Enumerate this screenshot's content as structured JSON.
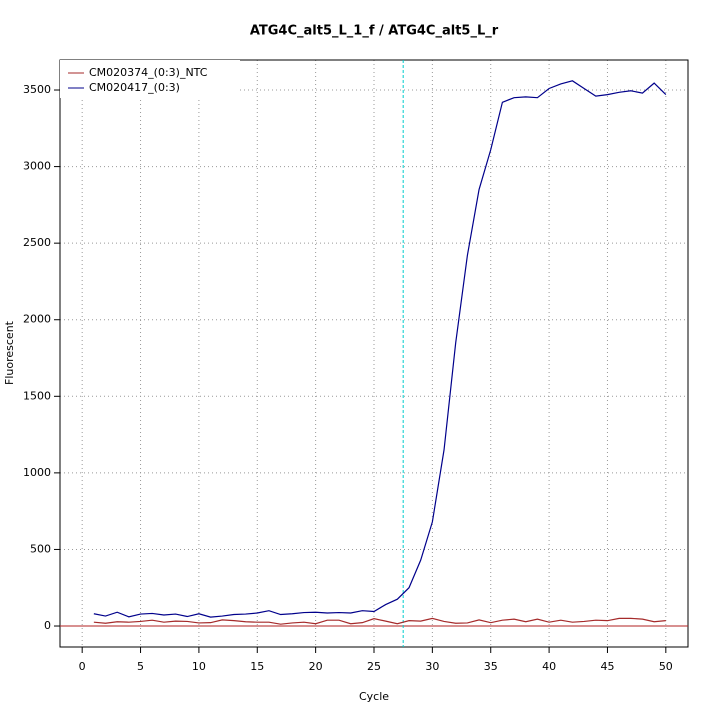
{
  "chart_data": {
    "type": "line",
    "title": "ATG4C_alt5_L_1_f / ATG4C_alt5_L_r",
    "x_label": "Cycle",
    "y_label": "Fluorescent",
    "x": [
      1,
      2,
      3,
      4,
      5,
      6,
      7,
      8,
      9,
      10,
      11,
      12,
      13,
      14,
      15,
      16,
      17,
      18,
      19,
      20,
      21,
      22,
      23,
      24,
      25,
      26,
      27,
      28,
      29,
      30,
      31,
      32,
      33,
      34,
      35,
      36,
      37,
      38,
      39,
      40,
      41,
      42,
      43,
      44,
      45,
      46,
      47,
      48,
      49,
      50
    ],
    "series": [
      {
        "name": "CM020374_(0:3)_NTC",
        "color": "#a52a2a",
        "values": [
          25,
          18,
          28,
          25,
          30,
          38,
          25,
          32,
          30,
          20,
          22,
          40,
          35,
          28,
          25,
          25,
          12,
          20,
          25,
          15,
          38,
          38,
          15,
          22,
          48,
          32,
          15,
          35,
          32,
          50,
          30,
          18,
          20,
          40,
          22,
          38,
          45,
          28,
          45,
          25,
          38,
          25,
          30,
          38,
          35,
          50,
          50,
          45,
          28,
          35
        ]
      },
      {
        "name": "CM020417_(0:3)",
        "color": "#00008b",
        "values": [
          80,
          65,
          90,
          60,
          78,
          82,
          72,
          78,
          62,
          80,
          58,
          65,
          75,
          78,
          85,
          100,
          75,
          80,
          88,
          90,
          85,
          88,
          85,
          100,
          95,
          140,
          175,
          250,
          430,
          680,
          1150,
          1850,
          2420,
          2850,
          3110,
          3420,
          3450,
          3455,
          3450,
          3510,
          3540,
          3560,
          3510,
          3460,
          3470,
          3485,
          3495,
          3480,
          3545,
          3470
        ]
      }
    ],
    "threshold_x": 27.5,
    "threshold_color": "#00cdcd",
    "baseline_y": 0,
    "baseline_color": "#b22222",
    "xlim": [
      -1.9,
      51.9
    ],
    "xticks": [
      0,
      5,
      10,
      15,
      20,
      25,
      30,
      35,
      40,
      45,
      50
    ],
    "ylim": [
      -137,
      3696
    ],
    "yticks": [
      0,
      500,
      1000,
      1500,
      2000,
      2500,
      3000,
      3500
    ],
    "grid": true,
    "legend": "top-left"
  }
}
